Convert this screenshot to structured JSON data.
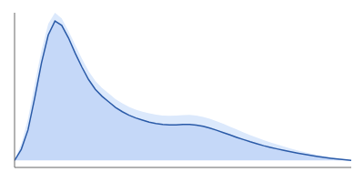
{
  "chart_data": {
    "type": "area",
    "x": [
      0,
      2,
      4,
      6,
      8,
      10,
      12,
      14,
      16,
      18,
      20,
      22,
      24,
      26,
      28,
      30,
      32,
      34,
      36,
      38,
      40,
      42,
      44,
      46,
      48,
      50,
      52,
      54,
      56,
      58,
      60,
      62,
      64,
      66,
      68,
      70,
      72,
      74,
      76,
      78,
      80,
      82,
      84,
      86,
      88,
      90,
      92,
      94,
      96,
      98,
      100
    ],
    "series": [
      {
        "type": "band",
        "color": "#dce9fc",
        "lower": [
          0.0,
          0.04,
          0.14,
          0.35,
          0.61,
          0.82,
          0.94,
          0.92,
          0.83,
          0.72,
          0.62,
          0.53,
          0.46,
          0.41,
          0.37,
          0.33,
          0.3,
          0.275,
          0.255,
          0.24,
          0.226,
          0.215,
          0.207,
          0.203,
          0.202,
          0.205,
          0.206,
          0.202,
          0.195,
          0.184,
          0.171,
          0.157,
          0.143,
          0.129,
          0.116,
          0.103,
          0.091,
          0.08,
          0.07,
          0.061,
          0.053,
          0.045,
          0.038,
          0.031,
          0.025,
          0.019,
          0.014,
          0.01,
          0.006,
          0.003,
          0.0
        ],
        "upper": [
          0.0,
          0.12,
          0.3,
          0.55,
          0.79,
          0.98,
          1.06,
          1.02,
          0.93,
          0.83,
          0.73,
          0.64,
          0.57,
          0.52,
          0.48,
          0.44,
          0.41,
          0.385,
          0.365,
          0.35,
          0.338,
          0.328,
          0.322,
          0.32,
          0.322,
          0.326,
          0.327,
          0.322,
          0.313,
          0.299,
          0.282,
          0.263,
          0.243,
          0.222,
          0.202,
          0.182,
          0.164,
          0.146,
          0.13,
          0.115,
          0.1,
          0.086,
          0.073,
          0.061,
          0.05,
          0.04,
          0.031,
          0.022,
          0.015,
          0.008,
          0.002
        ]
      },
      {
        "type": "area",
        "color": "#c5d8f8",
        "values": [
          0.0,
          0.08,
          0.22,
          0.45,
          0.7,
          0.9,
          1.0,
          0.97,
          0.88,
          0.77,
          0.67,
          0.58,
          0.51,
          0.46,
          0.42,
          0.38,
          0.35,
          0.325,
          0.305,
          0.29,
          0.275,
          0.265,
          0.258,
          0.255,
          0.255,
          0.258,
          0.258,
          0.253,
          0.245,
          0.232,
          0.217,
          0.2,
          0.183,
          0.166,
          0.15,
          0.134,
          0.12,
          0.106,
          0.094,
          0.083,
          0.072,
          0.062,
          0.053,
          0.044,
          0.036,
          0.029,
          0.022,
          0.016,
          0.01,
          0.005,
          0.001
        ]
      },
      {
        "type": "line",
        "color": "#2b5ba8",
        "values": [
          0.0,
          0.08,
          0.22,
          0.45,
          0.7,
          0.9,
          1.0,
          0.97,
          0.88,
          0.77,
          0.67,
          0.58,
          0.51,
          0.46,
          0.42,
          0.38,
          0.35,
          0.325,
          0.305,
          0.29,
          0.275,
          0.265,
          0.258,
          0.255,
          0.255,
          0.258,
          0.258,
          0.253,
          0.245,
          0.232,
          0.217,
          0.2,
          0.183,
          0.166,
          0.15,
          0.134,
          0.12,
          0.106,
          0.094,
          0.083,
          0.072,
          0.062,
          0.053,
          0.044,
          0.036,
          0.029,
          0.022,
          0.016,
          0.01,
          0.005,
          0.001
        ]
      }
    ],
    "xlim": [
      0,
      100
    ],
    "ylim": [
      -0.05,
      1.06
    ],
    "tick_labels": false
  }
}
